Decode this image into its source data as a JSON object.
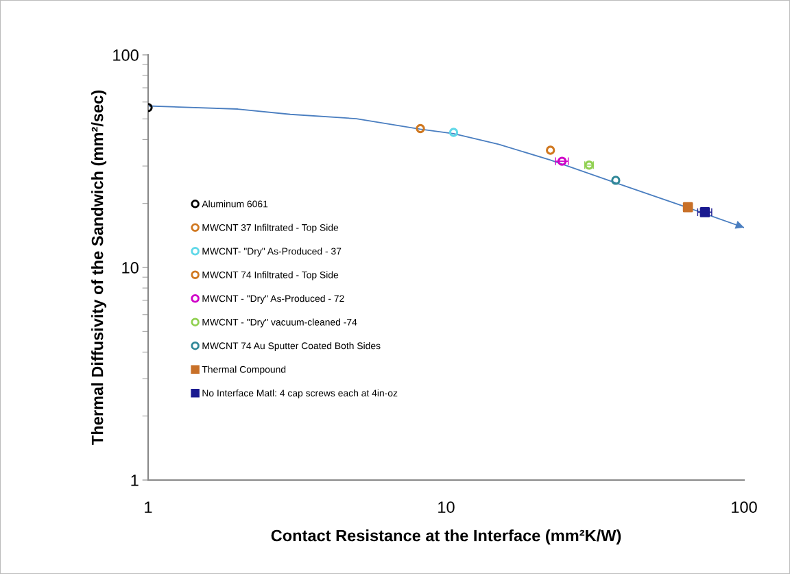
{
  "chart_data": {
    "type": "scatter",
    "xlabel": "Contact Resistance at the Interface (mm²K/W)",
    "ylabel": "Thermal Diffusivity of the Sandwich (mm²/sec)",
    "log": "xy",
    "xlim": [
      1,
      100
    ],
    "xticks": [
      1,
      10,
      100
    ],
    "ylim": [
      1,
      100
    ],
    "yticks": [
      1,
      10,
      100
    ],
    "grid": false,
    "legend": "left",
    "series": [
      {
        "name": "Aluminum 6061",
        "color": "#000000",
        "marker": "circle",
        "x": [
          1
        ],
        "values": [
          56.5
        ]
      },
      {
        "name": "MWCNT 37 Infiltrated - Top Side",
        "color": "#d07820",
        "marker": "circle",
        "x": [
          8.2
        ],
        "values": [
          45
        ]
      },
      {
        "name": "MWCNT- \"Dry\" As-Produced - 37",
        "color": "#60d8e8",
        "marker": "circle",
        "x": [
          10.6
        ],
        "values": [
          43.2
        ]
      },
      {
        "name": "MWCNT 74 Infiltrated - Top Side",
        "color": "#d07820",
        "marker": "circle",
        "x": [
          22.4
        ],
        "values": [
          35.6
        ]
      },
      {
        "name": "MWCNT - \"Dry\" As-Produced - 72",
        "color": "#d000c8",
        "marker": "circle",
        "x": [
          24.5
        ],
        "values": [
          31.6
        ],
        "xerrors": [
          1.2
        ]
      },
      {
        "name": "MWCNT - \"Dry\" vacuum-cleaned -74",
        "color": "#90d050",
        "marker": "circle",
        "x": [
          30.2
        ],
        "values": [
          30.3
        ],
        "xerrors": [
          1.0
        ]
      },
      {
        "name": "MWCNT 74 Au Sputter Coated Both Sides",
        "color": "#308898",
        "marker": "circle",
        "x": [
          37.1
        ],
        "values": [
          25.7
        ]
      },
      {
        "name": "Thermal Compound",
        "color": "#c87028",
        "marker": "square",
        "x": [
          64.8
        ],
        "values": [
          19.2
        ]
      },
      {
        "name": "No Interface Matl: 4 cap screws each at 4in-oz",
        "color": "#1a1a90",
        "marker": "square",
        "x": [
          73.9
        ],
        "values": [
          18.2
        ],
        "xerrors": [
          4
        ]
      },
      {
        "type": "line",
        "color": "#4a7ec0",
        "marker": "none",
        "line_style": "solid",
        "x": [
          1,
          2,
          3,
          5,
          8.2,
          10.6,
          15,
          22.4,
          37.1,
          64.8,
          100
        ],
        "values": [
          57.5,
          55.6,
          52.5,
          50.1,
          44.7,
          42.6,
          38,
          32,
          25,
          19.1,
          15.4
        ]
      }
    ]
  }
}
